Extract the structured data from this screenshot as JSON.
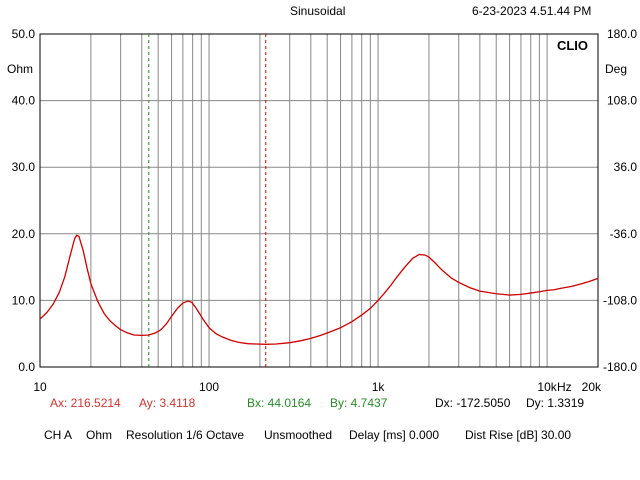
{
  "header": {
    "title": "Sinusoidal",
    "timestamp": "6-23-2023 4.51.44 PM",
    "brand": "CLIO"
  },
  "chart_data": {
    "type": "line",
    "x_scale": "log",
    "xlim": [
      10,
      20000
    ],
    "ylim_left": [
      0,
      50
    ],
    "ylim_right": [
      -180,
      180
    ],
    "left_unit": "Ohm",
    "right_unit": "Deg",
    "x_unit": "Hz",
    "left_ticks": [
      {
        "v": 0,
        "label": "0.0"
      },
      {
        "v": 10,
        "label": "10.0"
      },
      {
        "v": 20,
        "label": "20.0"
      },
      {
        "v": 30,
        "label": "30.0"
      },
      {
        "v": 40,
        "label": "40.0"
      },
      {
        "v": 50,
        "label": "50.0"
      }
    ],
    "right_ticks": [
      {
        "v": -180,
        "label": "-180.0"
      },
      {
        "v": -108,
        "label": "-108.0"
      },
      {
        "v": -36,
        "label": "-36.0"
      },
      {
        "v": 36,
        "label": "36.0"
      },
      {
        "v": 108,
        "label": "108.0"
      },
      {
        "v": 180,
        "label": "180.0"
      }
    ],
    "x_ticks": [
      {
        "v": 10,
        "label": "10"
      },
      {
        "v": 100,
        "label": "100"
      },
      {
        "v": 1000,
        "label": "1k"
      },
      {
        "v": 10000,
        "label": "10k"
      },
      {
        "v": 20000,
        "label": "20k"
      }
    ],
    "grid": true,
    "series": [
      {
        "color": "#cc0000",
        "x": [
          10,
          11,
          12,
          13,
          14,
          15,
          16,
          16.5,
          17,
          18,
          19,
          20,
          22,
          24,
          26,
          28,
          30,
          33,
          36,
          40,
          44,
          48,
          52,
          56,
          60,
          65,
          70,
          75,
          79,
          83,
          87,
          92,
          100,
          110,
          120,
          135,
          150,
          170,
          190,
          216,
          250,
          300,
          350,
          400,
          450,
          500,
          600,
          700,
          800,
          900,
          1000,
          1100,
          1200,
          1300,
          1450,
          1600,
          1750,
          1900,
          2000,
          2200,
          2400,
          2700,
          3000,
          3500,
          4000,
          5000,
          6000,
          7000,
          8000,
          9000,
          10000,
          11000,
          12000,
          14000,
          16000,
          18000,
          20000
        ],
        "y": [
          7.2,
          8.2,
          9.5,
          11.2,
          13.5,
          16.5,
          19.2,
          19.8,
          19.6,
          17.5,
          14.8,
          12.5,
          9.8,
          8.0,
          6.9,
          6.2,
          5.6,
          5.1,
          4.8,
          4.75,
          4.8,
          5.1,
          5.6,
          6.5,
          7.6,
          8.8,
          9.6,
          9.9,
          9.7,
          9.0,
          8.2,
          7.2,
          5.9,
          5.0,
          4.5,
          4.0,
          3.7,
          3.5,
          3.45,
          3.41,
          3.45,
          3.65,
          3.95,
          4.3,
          4.7,
          5.1,
          5.9,
          6.8,
          7.8,
          8.8,
          10.0,
          11.2,
          12.4,
          13.6,
          15.1,
          16.3,
          16.9,
          16.8,
          16.5,
          15.5,
          14.5,
          13.4,
          12.7,
          11.9,
          11.4,
          11.0,
          10.8,
          10.9,
          11.1,
          11.3,
          11.5,
          11.6,
          11.8,
          12.1,
          12.5,
          12.9,
          13.3
        ]
      }
    ],
    "cursors": [
      {
        "name": "A",
        "x": 216.5214,
        "color": "#cc0000"
      },
      {
        "name": "B",
        "x": 44.0164,
        "color": "#228822"
      }
    ]
  },
  "readouts": {
    "ax": "Ax: 216.5214",
    "ay": "Ay: 3.4118",
    "bx": "Bx: 44.0164",
    "by": "By: 4.7437",
    "dx": "Dx: -172.5050",
    "dy": "Dy: 1.3319"
  },
  "status_line": {
    "channel": "CH A",
    "unit": "Ohm",
    "resolution": "Resolution 1/6 Octave",
    "smoothing": "Unsmoothed",
    "delay": "Delay [ms] 0.000",
    "dist_rise": "Dist Rise [dB] 30.00"
  },
  "colors": {
    "readout_a": "#cc3333",
    "readout_b": "#2a8a2a",
    "readout_d": "#000000",
    "grid": "#888888",
    "plot_border": "#000000"
  }
}
